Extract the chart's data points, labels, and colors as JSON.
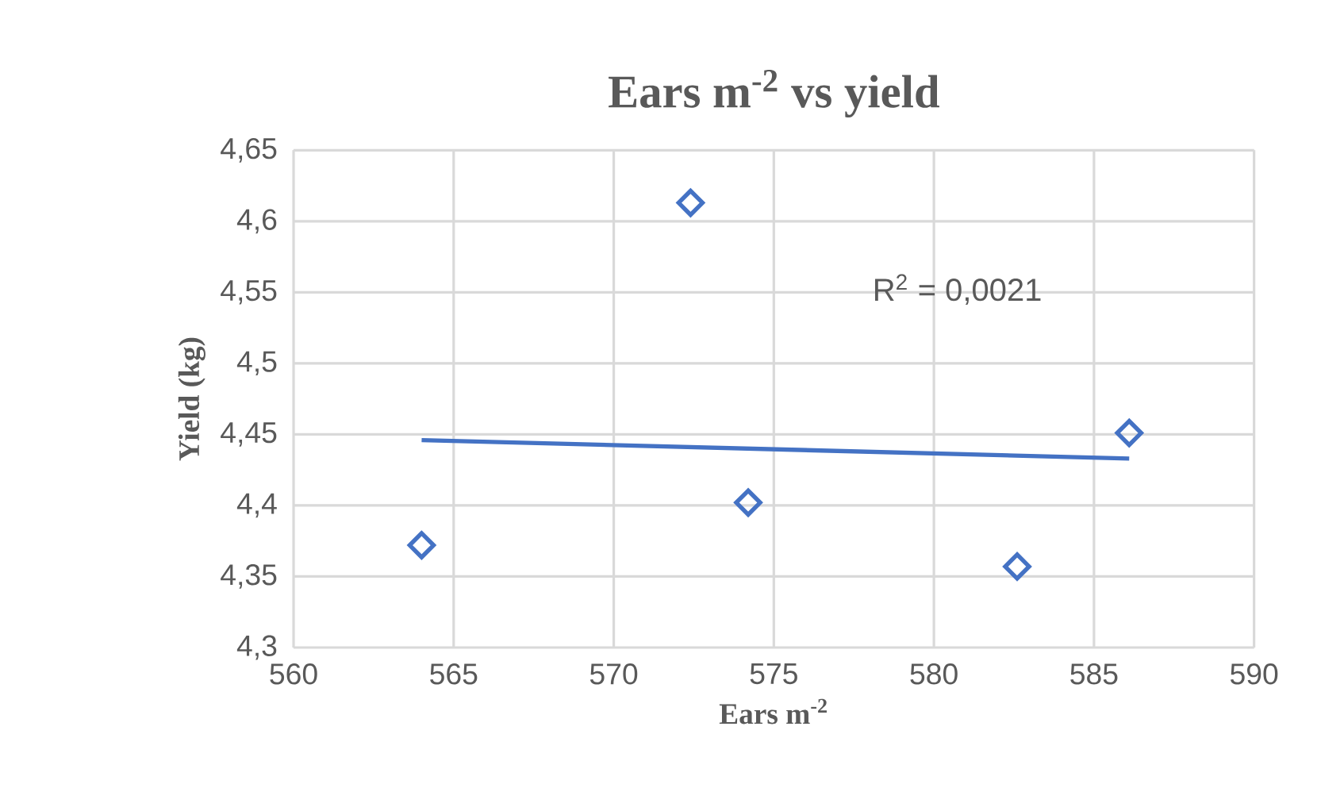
{
  "chart_data": {
    "type": "scatter",
    "title": "Ears m$^{-2}$ vs yield",
    "xlabel": "Ears m$^{-2}$",
    "ylabel": "Yield (kg)",
    "series": [
      {
        "color": "#4472c4",
        "marker": "diamond",
        "x": [
          564.0,
          572.4,
          574.2,
          582.6,
          586.1
        ],
        "values": [
          4.372,
          4.613,
          4.402,
          4.357,
          4.451
        ]
      },
      {
        "type": "line",
        "color": "#4472c4",
        "x": [
          564.0,
          586.1
        ],
        "values": [
          4.446,
          4.433
        ]
      }
    ],
    "annotations": [
      "R$^{2}$ = 0,0021"
    ],
    "xlim": [
      560,
      590
    ],
    "xticks": [
      560,
      565,
      570,
      575,
      580,
      585,
      590
    ],
    "ylim": [
      4.3,
      4.65
    ],
    "yticks": [
      {
        "value": 4.3,
        "label": "4,3"
      },
      {
        "value": 4.35,
        "label": "4,35"
      },
      {
        "value": 4.4,
        "label": "4,4"
      },
      {
        "value": 4.45,
        "label": "4,45"
      },
      {
        "value": 4.5,
        "label": "4,5"
      },
      {
        "value": 4.55,
        "label": "4,55"
      },
      {
        "value": 4.6,
        "label": "4,6"
      },
      {
        "value": 4.65,
        "label": "4,65"
      }
    ],
    "grid": true
  }
}
